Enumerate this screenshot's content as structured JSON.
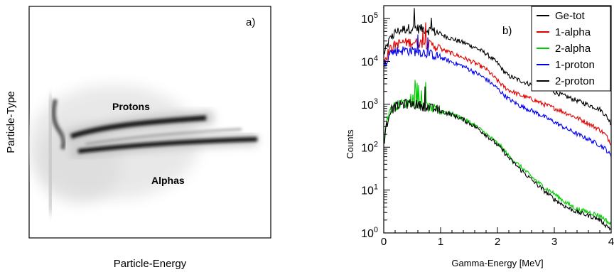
{
  "chart_data": [
    {
      "type": "heatmap",
      "panel_label": "a)",
      "xlabel": "Particle-Energy",
      "ylabel": "Particle-Type",
      "annotations": [
        "Protons",
        "Alphas"
      ],
      "ticks": "none",
      "colors": {
        "band_dark": "#111111",
        "band_mid": "#777777",
        "halo": "#cfcfcf",
        "frame": "#000000"
      }
    },
    {
      "type": "line",
      "panel_label": "b)",
      "xlabel": "Gamma-Energy [MeV]",
      "ylabel": "Counts",
      "xlim": [
        0,
        4
      ],
      "ylim": [
        1,
        200000
      ],
      "yscale": "log",
      "xticks": [
        "0",
        "1",
        "2",
        "3",
        "4"
      ],
      "yticks": [
        {
          "base": "10",
          "exp": "0",
          "value": 1
        },
        {
          "base": "10",
          "exp": "1",
          "value": 10
        },
        {
          "base": "10",
          "exp": "2",
          "value": 100
        },
        {
          "base": "10",
          "exp": "3",
          "value": 1000
        },
        {
          "base": "10",
          "exp": "4",
          "value": 10000
        },
        {
          "base": "10",
          "exp": "5",
          "value": 100000
        }
      ],
      "legend_position": "top-right",
      "x": [
        0.0,
        0.02,
        0.05,
        0.1,
        0.2,
        0.3,
        0.4,
        0.5,
        0.6,
        0.7,
        0.8,
        0.9,
        1.0,
        1.2,
        1.4,
        1.6,
        1.8,
        2.0,
        2.1,
        2.2,
        2.4,
        2.6,
        2.8,
        3.0,
        3.2,
        3.4,
        3.6,
        3.8,
        3.9,
        4.0
      ],
      "series": [
        {
          "name": "Ge-tot",
          "color": "#000000",
          "values": [
            15000,
            16000,
            20000,
            30000,
            45000,
            52000,
            56000,
            58000,
            57000,
            55000,
            52000,
            48000,
            42000,
            33000,
            27000,
            21000,
            15000,
            9000,
            6000,
            4500,
            3500,
            2800,
            2300,
            1900,
            1500,
            1200,
            950,
            750,
            550,
            350
          ]
        },
        {
          "name": "1-alpha",
          "color": "#e00000",
          "values": [
            10000,
            11000,
            13000,
            18000,
            24000,
            26000,
            27000,
            27000,
            26500,
            25500,
            24000,
            22000,
            19000,
            15000,
            12000,
            9000,
            6500,
            3500,
            2600,
            2100,
            1600,
            1300,
            1000,
            800,
            620,
            470,
            350,
            250,
            190,
            120
          ]
        },
        {
          "name": "2-alpha",
          "color": "#00cc00",
          "values": [
            150,
            200,
            350,
            700,
            900,
            1000,
            1050,
            1050,
            1000,
            900,
            820,
            760,
            700,
            580,
            450,
            320,
            200,
            120,
            90,
            60,
            35,
            20,
            12,
            8,
            5,
            3.5,
            3,
            2.5,
            2,
            1.5
          ]
        },
        {
          "name": "1-proton",
          "color": "#0000ee",
          "values": [
            8000,
            9000,
            11000,
            14000,
            16500,
            17500,
            17500,
            17000,
            16500,
            15500,
            14500,
            13500,
            12000,
            9500,
            7500,
            5500,
            3800,
            2300,
            1700,
            1300,
            900,
            700,
            520,
            380,
            270,
            200,
            150,
            110,
            90,
            60
          ]
        },
        {
          "name": "2-proton",
          "color": "#000000",
          "values": [
            120,
            180,
            300,
            650,
            850,
            950,
            1000,
            1000,
            950,
            880,
            800,
            740,
            680,
            560,
            430,
            300,
            190,
            110,
            80,
            55,
            30,
            17,
            10,
            6,
            4,
            3,
            2.5,
            2,
            1.5,
            1.2
          ]
        }
      ]
    }
  ]
}
